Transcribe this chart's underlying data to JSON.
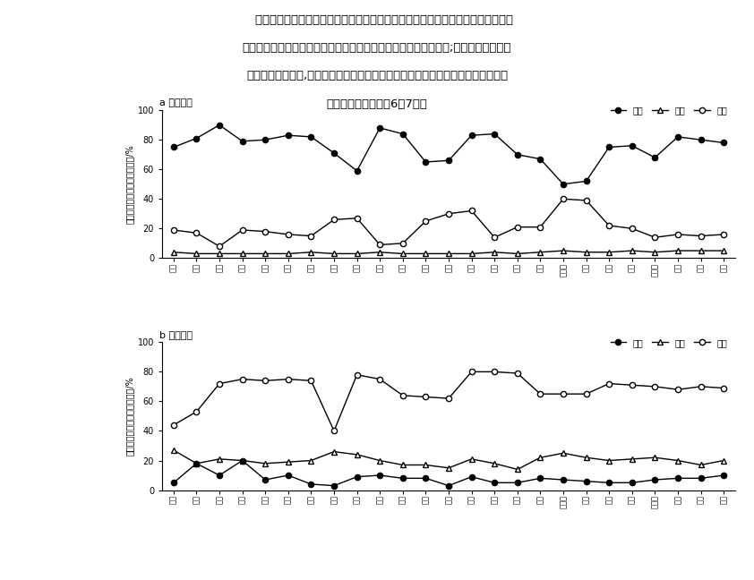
{
  "text_lines": [
    "    流动人才居留意愿与实际居留时长受个体特征、流迁模式、经济发展及公服设施影",
    "响。我国欠发达地区面临流动人才居留意愿低、居留时长短的困境;发达地区流动人才",
    "居留意愿普遍较高,但实际居留情况不佳。下图为我国部分省会城市及直辖市流动人",
    "才占比图。据此完成6～7题。"
  ],
  "city_labels": [
    "福州",
    "合肥",
    "南昌",
    "南京",
    "杭州",
    "武汉",
    "长沙",
    "重庆",
    "成都",
    "西安",
    "昆明",
    "贵阳",
    "南宁",
    "广州",
    "海口",
    "郑州",
    "济南",
    "石家庄",
    "太原",
    "沈阳",
    "长春",
    "哈尔滨",
    "北京",
    "天津",
    "上海"
  ],
  "chart_a_long": [
    75,
    81,
    90,
    79,
    80,
    83,
    82,
    71,
    59,
    88,
    84,
    65,
    66,
    83,
    84,
    70,
    67,
    50,
    52,
    75,
    76,
    68,
    82,
    80,
    78
  ],
  "chart_a_mid": [
    4,
    3,
    3,
    3,
    3,
    3,
    4,
    3,
    3,
    4,
    3,
    3,
    3,
    3,
    4,
    3,
    4,
    5,
    4,
    4,
    5,
    4,
    5,
    5,
    5
  ],
  "chart_a_short": [
    19,
    17,
    8,
    19,
    18,
    16,
    15,
    26,
    27,
    9,
    10,
    25,
    30,
    32,
    14,
    21,
    21,
    40,
    39,
    22,
    20,
    14,
    16,
    15,
    16
  ],
  "chart_b_long": [
    5,
    18,
    10,
    20,
    7,
    10,
    4,
    3,
    9,
    10,
    8,
    8,
    3,
    9,
    5,
    5,
    8,
    7,
    6,
    5,
    5,
    7,
    8,
    8,
    10
  ],
  "chart_b_mid": [
    27,
    18,
    21,
    20,
    18,
    19,
    20,
    26,
    24,
    20,
    17,
    17,
    15,
    21,
    18,
    14,
    22,
    25,
    22,
    20,
    21,
    22,
    20,
    17,
    20
  ],
  "chart_b_short": [
    44,
    53,
    72,
    75,
    74,
    75,
    74,
    40,
    78,
    75,
    64,
    63,
    62,
    80,
    80,
    79,
    65,
    65,
    65,
    72,
    71,
    70,
    68,
    70,
    69
  ],
  "ylabel": "流动人才占该市人才总量比例/%",
  "title_a": "a 居留意愿",
  "title_b": "b 实际居留",
  "legend_long": "长期",
  "legend_mid": "中期",
  "legend_short": "短期"
}
